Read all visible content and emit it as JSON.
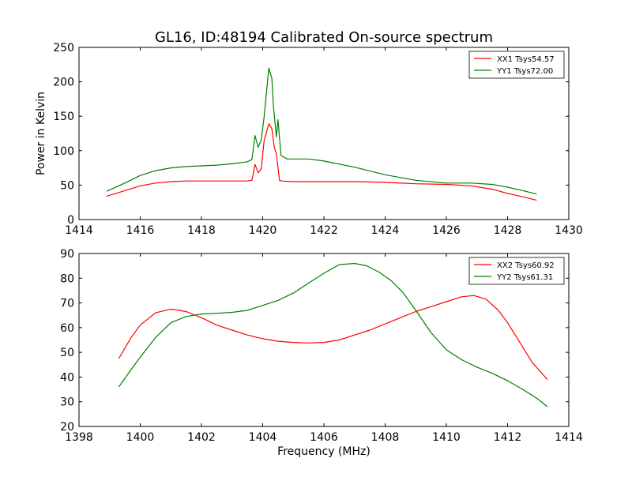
{
  "title": "GL16, ID:48194 Calibrated On-source spectrum",
  "chart_data": [
    {
      "type": "line",
      "ylabel": "Power in Kelvin",
      "xlabel": "",
      "xlim": [
        1414,
        1430
      ],
      "ylim": [
        0,
        250
      ],
      "xticks": [
        1414,
        1416,
        1418,
        1420,
        1422,
        1424,
        1426,
        1428,
        1430
      ],
      "yticks": [
        0,
        50,
        100,
        150,
        200,
        250
      ],
      "legend_position": "top-right",
      "series": [
        {
          "name": "XX1 Tsys54.57",
          "color": "#ff0000",
          "x": [
            1414.9,
            1415.5,
            1416.0,
            1416.5,
            1417.0,
            1417.5,
            1418.0,
            1418.5,
            1419.0,
            1419.5,
            1419.65,
            1419.75,
            1419.85,
            1419.95,
            1420.05,
            1420.2,
            1420.3,
            1420.38,
            1420.45,
            1420.55,
            1420.62,
            1421.0,
            1422.0,
            1423.0,
            1424.0,
            1425.0,
            1426.0,
            1426.8,
            1427.5,
            1428.0,
            1428.5,
            1428.95
          ],
          "y": [
            34,
            42,
            49,
            53,
            55,
            56,
            56,
            56,
            56,
            56,
            57,
            80,
            68,
            73,
            115,
            139,
            132,
            105,
            95,
            57,
            56,
            55,
            55,
            55,
            54,
            52,
            51,
            49,
            44,
            38,
            33,
            28
          ]
        },
        {
          "name": "YY1 Tsys72.00",
          "color": "#008000",
          "x": [
            1414.9,
            1415.5,
            1416.0,
            1416.5,
            1417.0,
            1417.5,
            1418.0,
            1418.5,
            1419.0,
            1419.5,
            1419.65,
            1419.75,
            1419.85,
            1419.95,
            1420.05,
            1420.2,
            1420.3,
            1420.35,
            1420.45,
            1420.5,
            1420.6,
            1420.8,
            1421.5,
            1422.0,
            1423.0,
            1424.0,
            1425.0,
            1426.0,
            1426.8,
            1427.5,
            1428.0,
            1428.5,
            1428.95
          ],
          "y": [
            41,
            53,
            64,
            71,
            75,
            77,
            78,
            79,
            81,
            84,
            87,
            122,
            105,
            115,
            150,
            220,
            205,
            165,
            120,
            145,
            93,
            88,
            88,
            85,
            76,
            65,
            57,
            53,
            53,
            51,
            47,
            42,
            37
          ]
        }
      ]
    },
    {
      "type": "line",
      "ylabel": "",
      "xlabel": "Frequency (MHz)",
      "xlim": [
        1398,
        1414
      ],
      "ylim": [
        20,
        90
      ],
      "xticks": [
        1398,
        1400,
        1402,
        1404,
        1406,
        1408,
        1410,
        1412,
        1414
      ],
      "yticks": [
        20,
        30,
        40,
        50,
        60,
        70,
        80,
        90
      ],
      "legend_position": "top-right",
      "series": [
        {
          "name": "XX2 Tsys60.92",
          "color": "#ff0000",
          "x": [
            1399.3,
            1399.7,
            1400.0,
            1400.5,
            1401.0,
            1401.5,
            1402.0,
            1402.5,
            1403.0,
            1403.5,
            1404.0,
            1404.5,
            1405.0,
            1405.5,
            1406.0,
            1406.5,
            1407.0,
            1407.5,
            1408.0,
            1408.5,
            1409.0,
            1409.5,
            1410.0,
            1410.5,
            1410.9,
            1411.3,
            1411.7,
            1412.0,
            1412.4,
            1412.8,
            1413.3
          ],
          "y": [
            47.5,
            56,
            61,
            66,
            67.5,
            66.5,
            64,
            61,
            59,
            57,
            55.5,
            54.5,
            54,
            53.8,
            54,
            55,
            57,
            59,
            61.5,
            64,
            66.5,
            68.5,
            70.5,
            72.5,
            73,
            71.5,
            67,
            62,
            54,
            46,
            39
          ]
        },
        {
          "name": "YY2 Tsys61.31",
          "color": "#008000",
          "x": [
            1399.3,
            1399.7,
            1400.0,
            1400.5,
            1401.0,
            1401.5,
            1402.0,
            1402.5,
            1403.0,
            1403.5,
            1404.0,
            1404.5,
            1405.0,
            1405.5,
            1406.0,
            1406.5,
            1407.0,
            1407.4,
            1407.8,
            1408.2,
            1408.6,
            1409.0,
            1409.5,
            1410.0,
            1410.5,
            1411.0,
            1411.5,
            1412.0,
            1412.5,
            1413.0,
            1413.3
          ],
          "y": [
            36,
            43,
            48,
            56,
            62,
            64.5,
            65.5,
            65.8,
            66.2,
            67,
            69,
            71,
            74,
            78,
            82,
            85.5,
            86,
            85,
            82.5,
            79,
            74,
            67,
            58,
            51,
            47,
            44,
            41.5,
            38.5,
            35,
            31,
            28
          ]
        }
      ]
    }
  ]
}
